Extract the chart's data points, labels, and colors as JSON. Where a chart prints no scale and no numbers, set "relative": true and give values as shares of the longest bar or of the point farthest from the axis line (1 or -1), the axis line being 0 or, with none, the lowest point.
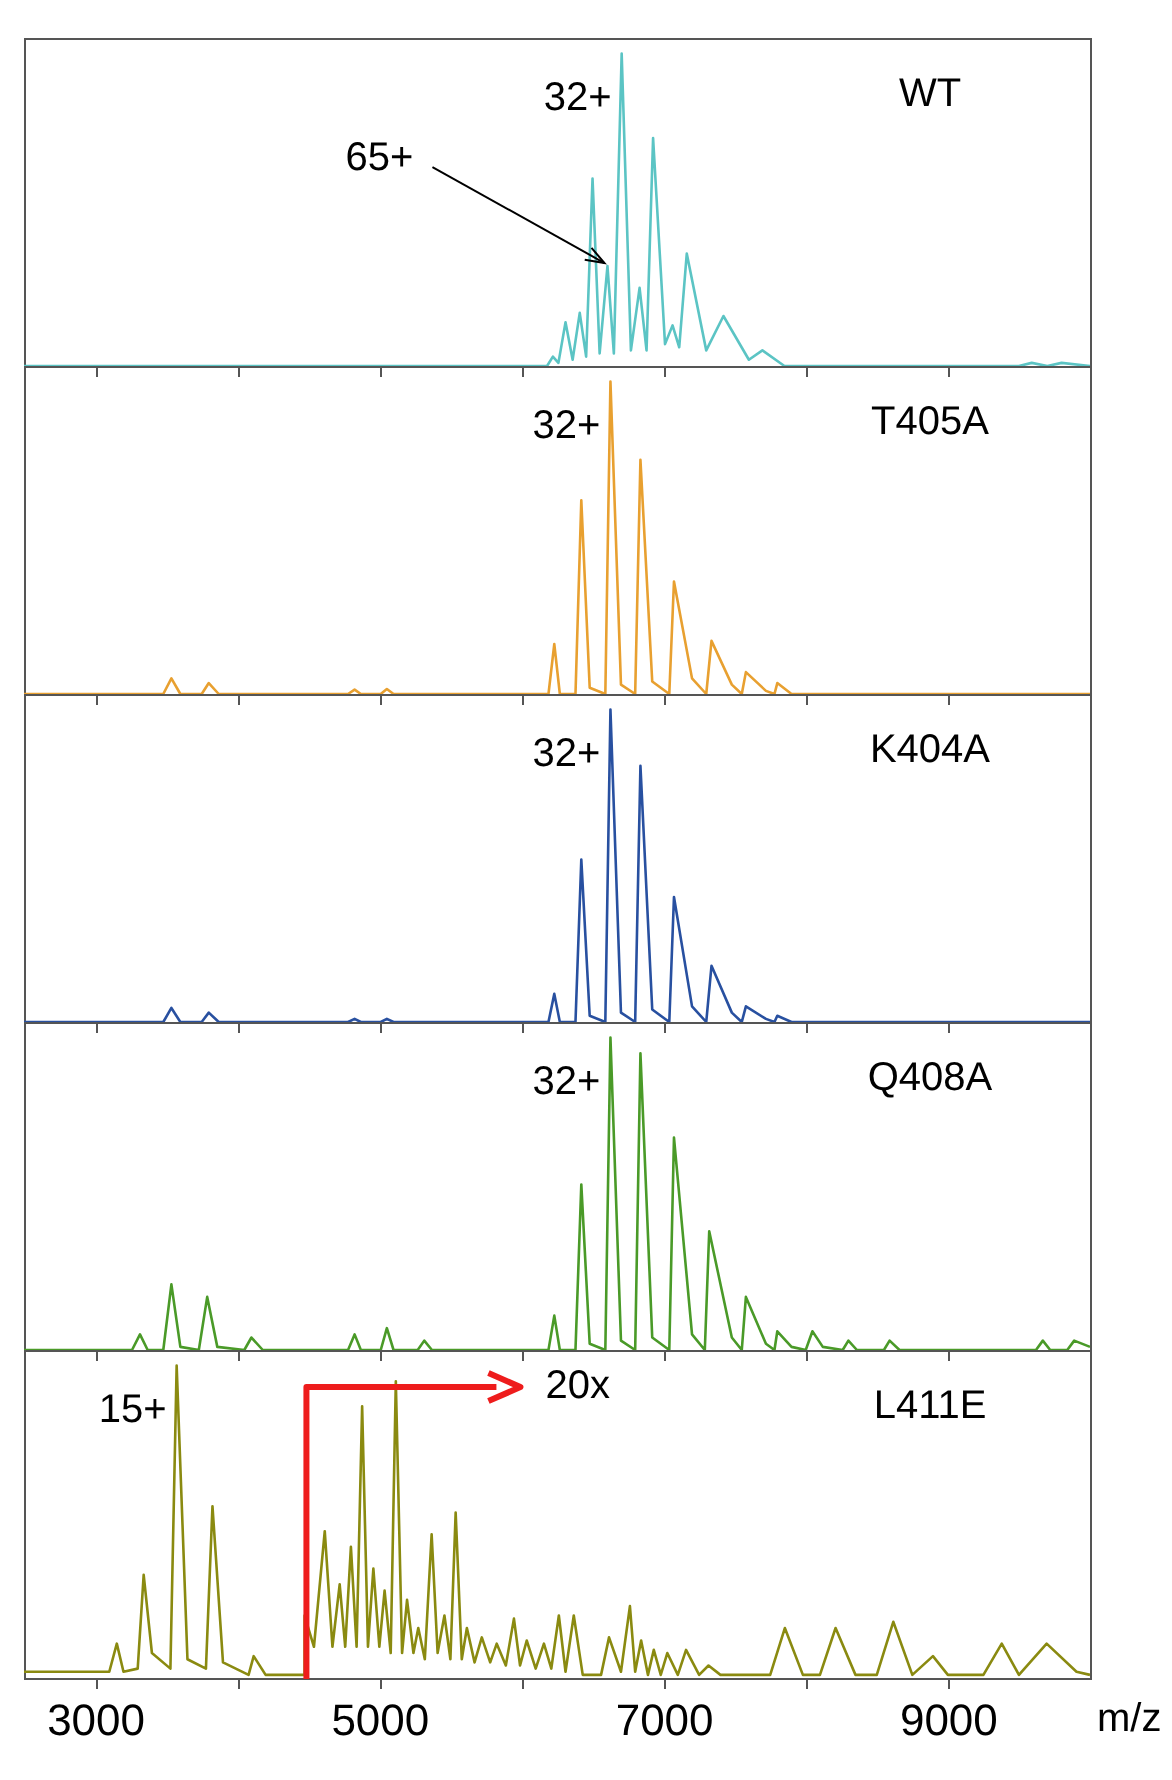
{
  "chart_data": [
    {
      "type": "line",
      "title": "WT",
      "relative": true,
      "tick_labels": false,
      "xlim": [
        2500,
        10000
      ],
      "xticks": [
        3000,
        {
          "value": 4000,
          "label": null
        },
        5000,
        {
          "value": 6000,
          "label": null
        },
        7000,
        {
          "value": 8000,
          "label": null
        },
        9000
      ],
      "annotations": [
        {
          "text": "32+",
          "x": 6705,
          "y": 1
        },
        {
          "text": "65+",
          "x": 6605,
          "y": 0.32
        }
      ],
      "x": [
        2500,
        5000,
        6180,
        6221,
        6260,
        6310,
        6360,
        6410,
        6455,
        6500,
        6550,
        6605,
        6650,
        6705,
        6770,
        6831,
        6880,
        6926,
        7010,
        7063,
        7110,
        7163,
        7300,
        7421,
        7600,
        7695,
        7850,
        9500,
        9590,
        9700,
        9800,
        10000
      ],
      "series": [
        {
          "color": "#5bc4c4",
          "values": [
            0,
            0,
            0,
            0.03,
            0.01,
            0.14,
            0.02,
            0.17,
            0.03,
            0.6,
            0.04,
            0.32,
            0.04,
            1,
            0.05,
            0.25,
            0.05,
            0.73,
            0.07,
            0.13,
            0.06,
            0.36,
            0.05,
            0.16,
            0.02,
            0.05,
            0,
            0,
            0.01,
            0,
            0.01,
            0
          ]
        }
      ]
    },
    {
      "type": "line",
      "title": "T405A",
      "relative": true,
      "tick_labels": false,
      "xlim": [
        2500,
        10000
      ],
      "xticks": [
        3000,
        {
          "value": 4000,
          "label": null
        },
        5000,
        {
          "value": 6000,
          "label": null
        },
        7000,
        {
          "value": 8000,
          "label": null
        },
        9000
      ],
      "annotations": [
        {
          "text": "32+",
          "x": 6626,
          "y": 1
        }
      ],
      "x": [
        2500,
        3480,
        3537,
        3600,
        3750,
        3800,
        3870,
        4780,
        4826,
        4870,
        5010,
        5053,
        5100,
        6190,
        6231,
        6270,
        6380,
        6421,
        6480,
        6590,
        6626,
        6700,
        6800,
        6837,
        6920,
        7040,
        7073,
        7200,
        7300,
        7337,
        7480,
        7550,
        7579,
        7720,
        7780,
        7800,
        7900,
        10000
      ],
      "series": [
        {
          "color": "#e8a030",
          "values": [
            0,
            0,
            0.05,
            0,
            0,
            0.035,
            0,
            0,
            0.014,
            0,
            0,
            0.016,
            0,
            0,
            0.16,
            0,
            0,
            0.62,
            0.02,
            0,
            1,
            0.03,
            0,
            0.75,
            0.04,
            0,
            0.36,
            0.05,
            0,
            0.17,
            0.03,
            0,
            0.07,
            0.01,
            0,
            0.035,
            0,
            0
          ]
        }
      ]
    },
    {
      "type": "line",
      "title": "K404A",
      "relative": true,
      "tick_labels": false,
      "xlim": [
        2500,
        10000
      ],
      "xticks": [
        3000,
        {
          "value": 4000,
          "label": null
        },
        5000,
        {
          "value": 6000,
          "label": null
        },
        7000,
        {
          "value": 8000,
          "label": null
        },
        9000
      ],
      "annotations": [
        {
          "text": "32+",
          "x": 6626,
          "y": 1
        }
      ],
      "x": [
        2500,
        3480,
        3537,
        3600,
        3750,
        3800,
        3870,
        4780,
        4826,
        4870,
        5010,
        5053,
        5100,
        6190,
        6231,
        6270,
        6380,
        6421,
        6480,
        6590,
        6626,
        6700,
        6800,
        6837,
        6920,
        7040,
        7073,
        7200,
        7300,
        7337,
        7480,
        7550,
        7579,
        7720,
        7780,
        7800,
        7900,
        10000
      ],
      "series": [
        {
          "color": "#2850a0",
          "values": [
            0,
            0,
            0.045,
            0,
            0,
            0.03,
            0,
            0,
            0.01,
            0,
            0,
            0.01,
            0,
            0,
            0.09,
            0,
            0,
            0.52,
            0.02,
            0,
            1,
            0.03,
            0,
            0.82,
            0.04,
            0,
            0.4,
            0.05,
            0,
            0.18,
            0.03,
            0,
            0.05,
            0.01,
            0,
            0.02,
            0,
            0
          ]
        }
      ]
    },
    {
      "type": "line",
      "title": "Q408A",
      "relative": true,
      "tick_labels": false,
      "xlim": [
        2500,
        10000
      ],
      "xticks": [
        3000,
        {
          "value": 4000,
          "label": null
        },
        5000,
        {
          "value": 6000,
          "label": null
        },
        7000,
        {
          "value": 8000,
          "label": null
        },
        9000
      ],
      "annotations": [
        {
          "text": "32+",
          "x": 6626,
          "y": 1
        }
      ],
      "x": [
        2500,
        3260,
        3316,
        3370,
        3480,
        3537,
        3600,
        3730,
        3789,
        3860,
        4050,
        4100,
        4180,
        4780,
        4826,
        4870,
        5010,
        5053,
        5100,
        5270,
        5316,
        5370,
        6190,
        6231,
        6270,
        6380,
        6421,
        6480,
        6590,
        6626,
        6700,
        6800,
        6837,
        6920,
        7040,
        7073,
        7200,
        7290,
        7321,
        7480,
        7550,
        7579,
        7720,
        7780,
        7800,
        7900,
        8000,
        8047,
        8120,
        8260,
        8300,
        8360,
        8550,
        8590,
        8660,
        9620,
        9668,
        9720,
        9840,
        9889,
        10000
      ],
      "series": [
        {
          "color": "#4a9a28",
          "values": [
            0,
            0,
            0.05,
            0,
            0,
            0.21,
            0.01,
            0,
            0.17,
            0.01,
            0,
            0.04,
            0,
            0,
            0.05,
            0,
            0,
            0.07,
            0,
            0,
            0.03,
            0,
            0,
            0.11,
            0,
            0,
            0.53,
            0.02,
            0,
            1,
            0.03,
            0,
            0.95,
            0.04,
            0,
            0.68,
            0.05,
            0,
            0.38,
            0.04,
            0,
            0.17,
            0.02,
            0,
            0.06,
            0.01,
            0,
            0.06,
            0.01,
            0,
            0.03,
            0,
            0,
            0.03,
            0,
            0,
            0.03,
            0,
            0,
            0.03,
            0.01
          ]
        }
      ]
    },
    {
      "type": "line",
      "title": "L411E",
      "relative": true,
      "tick_labels": "x",
      "xlabel": "m/z",
      "xlim": [
        2500,
        10000
      ],
      "xticks": [
        3000,
        {
          "value": 4000,
          "label": null
        },
        5000,
        {
          "value": 6000,
          "label": null
        },
        7000,
        {
          "value": 8000,
          "label": null
        },
        9000
      ],
      "annotations": [
        {
          "text": "15+",
          "x": 3574,
          "y": 1
        },
        "20x"
      ],
      "x": [
        2500,
        3000,
        3100,
        3153,
        3200,
        3300,
        3342,
        3400,
        3530,
        3574,
        3650,
        3780,
        3826,
        3900,
        4080,
        4116,
        4200,
        4474,
        4474,
        4540,
        4616,
        4670,
        4721,
        4760,
        4800,
        4840,
        4879,
        4920,
        4958,
        5000,
        5037,
        5080,
        5116,
        5160,
        5195,
        5240,
        5274,
        5320,
        5368,
        5410,
        5458,
        5500,
        5537,
        5580,
        5616,
        5670,
        5721,
        5780,
        5826,
        5890,
        5947,
        5990,
        6037,
        6100,
        6158,
        6210,
        6263,
        6310,
        6368,
        6431,
        6560,
        6616,
        6700,
        6763,
        6800,
        6842,
        6890,
        6931,
        6980,
        7026,
        7100,
        7158,
        7250,
        7316,
        7400,
        7750,
        7853,
        7980,
        8100,
        8210,
        8350,
        8500,
        8616,
        8750,
        8895,
        9000,
        9250,
        9379,
        9500,
        9695,
        9905,
        10000
      ],
      "series": [
        {
          "color": "#8a8a10",
          "values": [
            0.02,
            0.02,
            0.02,
            0.11,
            0.02,
            0.03,
            0.33,
            0.08,
            0.03,
            1,
            0.06,
            0.03,
            0.55,
            0.05,
            0.01,
            0.07,
            0.01,
            0.01,
            0.2,
            0.1,
            0.47,
            0.1,
            0.3,
            0.1,
            0.42,
            0.1,
            0.87,
            0.1,
            0.35,
            0.1,
            0.28,
            0.08,
            0.95,
            0.08,
            0.25,
            0.08,
            0.16,
            0.06,
            0.46,
            0.08,
            0.2,
            0.06,
            0.53,
            0.06,
            0.16,
            0.05,
            0.13,
            0.05,
            0.11,
            0.04,
            0.19,
            0.04,
            0.12,
            0.03,
            0.11,
            0.03,
            0.2,
            0.02,
            0.2,
            0.01,
            0.01,
            0.13,
            0.02,
            0.23,
            0.02,
            0.12,
            0.01,
            0.09,
            0.01,
            0.08,
            0.01,
            0.09,
            0.01,
            0.04,
            0.01,
            0.01,
            0.16,
            0.01,
            0.01,
            0.16,
            0.01,
            0.01,
            0.18,
            0.01,
            0.07,
            0.01,
            0.01,
            0.11,
            0.01,
            0.11,
            0.02,
            0.01
          ]
        }
      ]
    }
  ]
}
